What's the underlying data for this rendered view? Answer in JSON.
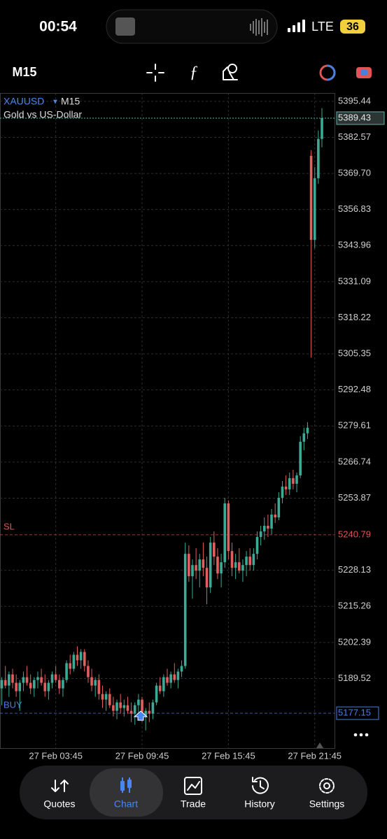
{
  "status_bar": {
    "time": "00:54",
    "network": "LTE",
    "battery": "36"
  },
  "toolbar": {
    "timeframe": "M15"
  },
  "chart_data": {
    "type": "candlestick",
    "symbol": "XAUUSD",
    "timeframe": "M15",
    "subtitle": "Gold vs US-Dollar",
    "up_color": "#3bab95",
    "down_color": "#e25f5f",
    "grid": true,
    "ylim": [
      5164.7,
      5398.4
    ],
    "yticks": [
      5395.44,
      5382.57,
      {
        "value": 5369.7,
        "label": "5369.70"
      },
      5356.83,
      5343.96,
      5331.09,
      5318.22,
      5305.35,
      5292.48,
      5279.61,
      5266.74,
      5253.87,
      5228.13,
      5215.26,
      5202.39,
      5189.52
    ],
    "xlim": [
      -0.5,
      92.5
    ],
    "xticks": [
      {
        "value": 15,
        "label": "27 Feb 03:45"
      },
      {
        "value": 39,
        "label": "27 Feb 09:45"
      },
      {
        "value": 63,
        "label": "27 Feb 15:45"
      },
      {
        "value": 87,
        "label": "27 Feb 21:45"
      }
    ],
    "current_price": 5389.43,
    "levels": [
      {
        "label": "SL",
        "value": 5240.79,
        "color": "#e05555"
      },
      {
        "label": "BUY",
        "value": 5177.15,
        "color": "#4a7fe0"
      }
    ],
    "candles": [
      [
        5186,
        5190,
        5180,
        5189
      ],
      [
        5189,
        5194,
        5186,
        5187
      ],
      [
        5187,
        5192,
        5183,
        5191
      ],
      [
        5191,
        5193,
        5186,
        5188
      ],
      [
        5188,
        5191,
        5183,
        5185
      ],
      [
        5185,
        5189,
        5178,
        5188
      ],
      [
        5188,
        5192,
        5185,
        5190
      ],
      [
        5190,
        5194,
        5187,
        5188
      ],
      [
        5188,
        5191,
        5184,
        5186
      ],
      [
        5186,
        5190,
        5183,
        5189
      ],
      [
        5189,
        5192,
        5186,
        5190
      ],
      [
        5190,
        5193,
        5187,
        5188
      ],
      [
        5188,
        5191,
        5183,
        5185
      ],
      [
        5185,
        5189,
        5182,
        5188
      ],
      [
        5188,
        5192,
        5186,
        5191
      ],
      [
        5191,
        5194,
        5188,
        5189
      ],
      [
        5189,
        5191,
        5184,
        5186
      ],
      [
        5186,
        5190,
        5183,
        5189
      ],
      [
        5189,
        5196,
        5188,
        5195
      ],
      [
        5195,
        5198,
        5191,
        5193
      ],
      [
        5193,
        5199,
        5192,
        5198
      ],
      [
        5198,
        5201,
        5194,
        5196
      ],
      [
        5196,
        5200,
        5193,
        5199
      ],
      [
        5199,
        5200,
        5192,
        5194
      ],
      [
        5194,
        5196,
        5188,
        5190
      ],
      [
        5190,
        5193,
        5185,
        5187
      ],
      [
        5187,
        5190,
        5183,
        5189
      ],
      [
        5189,
        5191,
        5182,
        5184
      ],
      [
        5184,
        5187,
        5179,
        5182
      ],
      [
        5182,
        5185,
        5178,
        5184
      ],
      [
        5184,
        5186,
        5179,
        5180
      ],
      [
        5180,
        5183,
        5176,
        5178
      ],
      [
        5178,
        5182,
        5175,
        5181
      ],
      [
        5181,
        5184,
        5177,
        5179
      ],
      [
        5179,
        5182,
        5176,
        5180
      ],
      [
        5180,
        5183,
        5177,
        5178
      ],
      [
        5178,
        5181,
        5174,
        5177
      ],
      [
        5177,
        5181,
        5173,
        5180
      ],
      [
        5180,
        5184,
        5176,
        5182
      ],
      [
        5182,
        5183,
        5174,
        5176
      ],
      [
        5176,
        5179,
        5171,
        5178
      ],
      [
        5178,
        5181,
        5174,
        5177
      ],
      [
        5177,
        5182,
        5175,
        5181
      ],
      [
        5181,
        5188,
        5180,
        5187
      ],
      [
        5187,
        5190,
        5184,
        5185
      ],
      [
        5185,
        5191,
        5183,
        5190
      ],
      [
        5190,
        5193,
        5187,
        5188
      ],
      [
        5188,
        5192,
        5186,
        5191
      ],
      [
        5191,
        5195,
        5188,
        5189
      ],
      [
        5189,
        5193,
        5186,
        5192
      ],
      [
        5192,
        5196,
        5190,
        5194
      ],
      [
        5194,
        5238,
        5193,
        5234
      ],
      [
        5234,
        5237,
        5224,
        5226
      ],
      [
        5226,
        5232,
        5218,
        5230
      ],
      [
        5230,
        5236,
        5225,
        5228
      ],
      [
        5228,
        5234,
        5222,
        5232
      ],
      [
        5232,
        5238,
        5226,
        5229
      ],
      [
        5229,
        5233,
        5216,
        5222
      ],
      [
        5222,
        5240,
        5220,
        5238
      ],
      [
        5238,
        5242,
        5230,
        5233
      ],
      [
        5233,
        5236,
        5225,
        5227
      ],
      [
        5227,
        5234,
        5222,
        5231
      ],
      [
        5231,
        5254,
        5229,
        5252
      ],
      [
        5252,
        5253,
        5232,
        5235
      ],
      [
        5235,
        5238,
        5226,
        5229
      ],
      [
        5229,
        5234,
        5225,
        5231
      ],
      [
        5231,
        5236,
        5227,
        5228
      ],
      [
        5228,
        5232,
        5224,
        5230
      ],
      [
        5230,
        5235,
        5226,
        5233
      ],
      [
        5233,
        5236,
        5228,
        5230
      ],
      [
        5230,
        5236,
        5228,
        5234
      ],
      [
        5234,
        5242,
        5232,
        5240
      ],
      [
        5240,
        5244,
        5237,
        5242
      ],
      [
        5242,
        5247,
        5239,
        5244
      ],
      [
        5244,
        5248,
        5240,
        5243
      ],
      [
        5243,
        5250,
        5241,
        5248
      ],
      [
        5248,
        5252,
        5245,
        5247
      ],
      [
        5247,
        5256,
        5246,
        5254
      ],
      [
        5254,
        5260,
        5252,
        5258
      ],
      [
        5258,
        5262,
        5255,
        5257
      ],
      [
        5257,
        5263,
        5255,
        5261
      ],
      [
        5261,
        5264,
        5257,
        5259
      ],
      [
        5259,
        5263,
        5256,
        5262
      ],
      [
        5262,
        5276,
        5261,
        5274
      ],
      [
        5274,
        5279,
        5271,
        5277
      ],
      [
        5277,
        5281,
        5275,
        5279
      ],
      [
        5376,
        5378,
        5304,
        5346
      ],
      [
        5346,
        5372,
        5343,
        5368
      ],
      [
        5368,
        5385,
        5366,
        5382
      ],
      [
        5382,
        5393,
        5379,
        5389.43
      ]
    ]
  },
  "tabs": [
    {
      "label": "Quotes"
    },
    {
      "label": "Chart"
    },
    {
      "label": "Trade"
    },
    {
      "label": "History"
    },
    {
      "label": "Settings"
    }
  ]
}
